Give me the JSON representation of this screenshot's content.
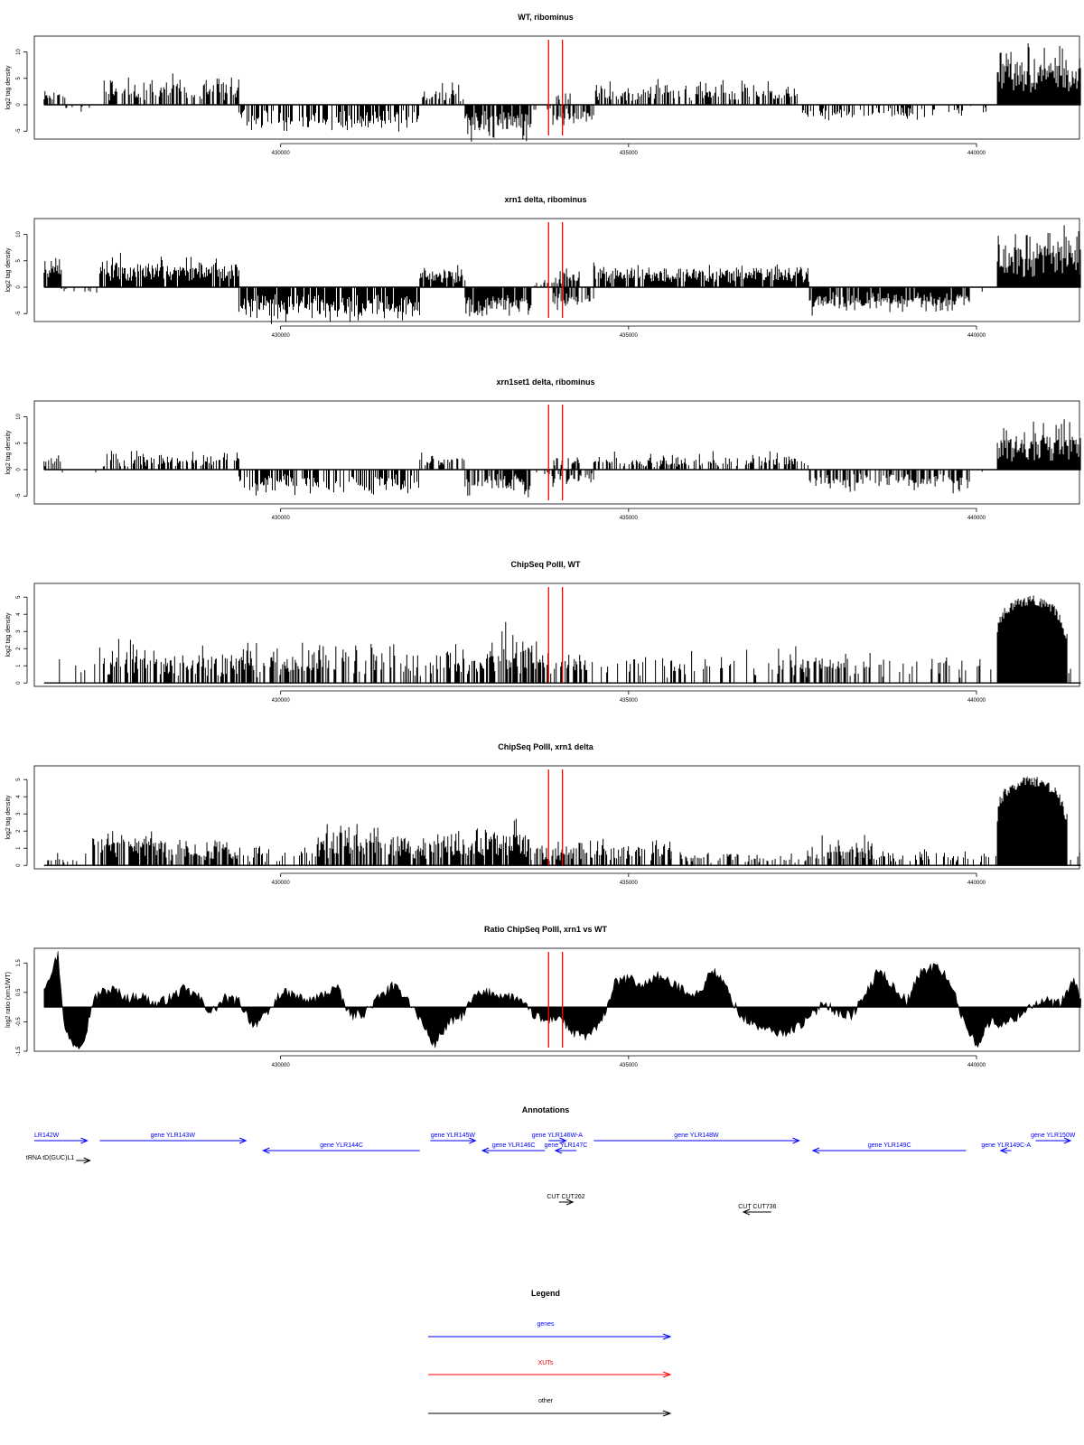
{
  "colors": {
    "genes": "#0000ff",
    "XUTs": "#ff0000",
    "other": "#000000",
    "marker": "#ff0000",
    "signal": "#000000"
  },
  "markers_x": [
    433850,
    434050
  ],
  "chart_data": [
    {
      "type": "bar",
      "title": "WT, ribominus",
      "ylabel": "log2 tag density",
      "xlim": [
        426460,
        441480
      ],
      "ylim": [
        -6.5,
        13
      ],
      "yticks": [
        -5,
        0,
        5,
        10
      ],
      "xticks": [
        430000,
        435000,
        440000
      ],
      "grid": false,
      "x_range": [
        426600,
        441500
      ],
      "seed": 11,
      "segments": [
        {
          "x0": 426600,
          "x1": 426900,
          "sign": 1,
          "base": 1.8,
          "amp": 1.5,
          "fill": 0.45
        },
        {
          "x0": 426900,
          "x1": 427450,
          "sign": -1,
          "base": 0.6,
          "amp": 0.8,
          "fill": 0.08
        },
        {
          "x0": 427450,
          "x1": 429400,
          "sign": 1,
          "base": 2.8,
          "amp": 3.0,
          "fill": 0.6
        },
        {
          "x0": 429400,
          "x1": 432000,
          "sign": -1,
          "base": 2.8,
          "amp": 2.5,
          "fill": 0.55
        },
        {
          "x0": 432000,
          "x1": 432650,
          "sign": 1,
          "base": 1.8,
          "amp": 2.2,
          "fill": 0.55
        },
        {
          "x0": 432650,
          "x1": 433600,
          "sign": -1,
          "base": 4.0,
          "amp": 2.5,
          "fill": 0.8
        },
        {
          "x0": 433600,
          "x1": 433900,
          "sign": -1,
          "base": 0.8,
          "amp": 1.0,
          "fill": 0.15
        },
        {
          "x0": 433900,
          "x1": 434500,
          "sign": -1,
          "base": 2.5,
          "amp": 1.5,
          "fill": 0.5
        },
        {
          "x0": 433900,
          "x1": 434200,
          "sign": 1,
          "base": 1.5,
          "amp": 1.5,
          "fill": 0.4
        },
        {
          "x0": 434500,
          "x1": 437500,
          "sign": 1,
          "base": 2.2,
          "amp": 2.5,
          "fill": 0.55
        },
        {
          "x0": 437500,
          "x1": 439800,
          "sign": -1,
          "base": 1.5,
          "amp": 1.5,
          "fill": 0.4
        },
        {
          "x0": 439800,
          "x1": 440300,
          "sign": -1,
          "base": 0.5,
          "amp": 1.0,
          "fill": 0.08
        },
        {
          "x0": 440300,
          "x1": 441500,
          "sign": 1,
          "base": 6.5,
          "amp": 4.5,
          "fill": 1.0
        }
      ]
    },
    {
      "type": "bar",
      "title": "xrn1 delta, ribominus",
      "ylabel": "log2 tag density",
      "xlim": [
        426460,
        441480
      ],
      "ylim": [
        -6.5,
        13
      ],
      "yticks": [
        -5,
        0,
        5,
        10
      ],
      "xticks": [
        430000,
        435000,
        440000
      ],
      "grid": false,
      "x_range": [
        426600,
        441500
      ],
      "seed": 23,
      "segments": [
        {
          "x0": 426600,
          "x1": 426850,
          "sign": 1,
          "base": 3.5,
          "amp": 3.0,
          "fill": 0.9
        },
        {
          "x0": 426850,
          "x1": 427400,
          "sign": -1,
          "base": 0.6,
          "amp": 1.0,
          "fill": 0.1
        },
        {
          "x0": 427400,
          "x1": 429400,
          "sign": 1,
          "base": 3.5,
          "amp": 2.5,
          "fill": 0.9
        },
        {
          "x0": 429400,
          "x1": 432000,
          "sign": -1,
          "base": 4.2,
          "amp": 2.3,
          "fill": 0.9
        },
        {
          "x0": 432000,
          "x1": 432650,
          "sign": 1,
          "base": 2.5,
          "amp": 1.5,
          "fill": 0.9
        },
        {
          "x0": 432650,
          "x1": 433600,
          "sign": -1,
          "base": 4.2,
          "amp": 2.0,
          "fill": 0.95
        },
        {
          "x0": 433600,
          "x1": 433900,
          "sign": 1,
          "base": 0.8,
          "amp": 0.8,
          "fill": 0.3
        },
        {
          "x0": 433900,
          "x1": 434500,
          "sign": -1,
          "base": 2.8,
          "amp": 1.5,
          "fill": 0.7
        },
        {
          "x0": 433900,
          "x1": 434300,
          "sign": 1,
          "base": 2.0,
          "amp": 1.5,
          "fill": 0.6
        },
        {
          "x0": 434500,
          "x1": 437600,
          "sign": 1,
          "base": 2.5,
          "amp": 2.0,
          "fill": 0.85
        },
        {
          "x0": 437600,
          "x1": 439900,
          "sign": -1,
          "base": 3.0,
          "amp": 2.0,
          "fill": 0.85
        },
        {
          "x0": 439900,
          "x1": 440300,
          "sign": -1,
          "base": 0.5,
          "amp": 1.0,
          "fill": 0.1
        },
        {
          "x0": 440300,
          "x1": 441500,
          "sign": 1,
          "base": 6.3,
          "amp": 4.2,
          "fill": 1.0
        }
      ]
    },
    {
      "type": "bar",
      "title": "xrn1set1 delta, ribominus",
      "ylabel": "log2 tag density",
      "xlim": [
        426460,
        441480
      ],
      "ylim": [
        -6.5,
        13
      ],
      "yticks": [
        -5,
        0,
        5,
        10
      ],
      "xticks": [
        430000,
        435000,
        440000
      ],
      "grid": false,
      "x_range": [
        426600,
        441500
      ],
      "seed": 37,
      "segments": [
        {
          "x0": 426600,
          "x1": 426850,
          "sign": 1,
          "base": 1.8,
          "amp": 2.5,
          "fill": 0.45
        },
        {
          "x0": 426850,
          "x1": 427400,
          "sign": -1,
          "base": 0.8,
          "amp": 1.2,
          "fill": 0.1
        },
        {
          "x0": 427400,
          "x1": 429400,
          "sign": 1,
          "base": 1.6,
          "amp": 2.6,
          "fill": 0.55
        },
        {
          "x0": 429400,
          "x1": 432000,
          "sign": -1,
          "base": 2.6,
          "amp": 2.5,
          "fill": 0.6
        },
        {
          "x0": 432000,
          "x1": 432650,
          "sign": 1,
          "base": 1.8,
          "amp": 1.5,
          "fill": 0.55
        },
        {
          "x0": 432650,
          "x1": 433600,
          "sign": -1,
          "base": 2.8,
          "amp": 2.6,
          "fill": 0.7
        },
        {
          "x0": 433600,
          "x1": 433900,
          "sign": -1,
          "base": 0.8,
          "amp": 1.0,
          "fill": 0.2
        },
        {
          "x0": 433900,
          "x1": 434500,
          "sign": -1,
          "base": 2.0,
          "amp": 1.5,
          "fill": 0.5
        },
        {
          "x0": 433900,
          "x1": 434300,
          "sign": 1,
          "base": 1.3,
          "amp": 1.5,
          "fill": 0.4
        },
        {
          "x0": 434500,
          "x1": 437600,
          "sign": 1,
          "base": 1.6,
          "amp": 2.0,
          "fill": 0.5
        },
        {
          "x0": 437600,
          "x1": 439900,
          "sign": -1,
          "base": 2.4,
          "amp": 2.2,
          "fill": 0.6
        },
        {
          "x0": 439900,
          "x1": 440300,
          "sign": -1,
          "base": 0.5,
          "amp": 1.0,
          "fill": 0.1
        },
        {
          "x0": 440300,
          "x1": 441500,
          "sign": 1,
          "base": 4.8,
          "amp": 4.2,
          "fill": 1.0
        }
      ]
    },
    {
      "type": "bar",
      "title": "ChipSeq PolII, WT",
      "ylabel": "log2 tag density",
      "xlim": [
        426460,
        441480
      ],
      "ylim": [
        -0.2,
        5.8
      ],
      "yticks": [
        0,
        1,
        2,
        3,
        4,
        5
      ],
      "xticks": [
        430000,
        435000,
        440000
      ],
      "grid": false,
      "x_range": [
        426600,
        441500
      ],
      "seed": 51,
      "segments": [
        {
          "x0": 426600,
          "x1": 427400,
          "sign": 1,
          "base": 1.0,
          "amp": 0.8,
          "fill": 0.12
        },
        {
          "x0": 427400,
          "x1": 428100,
          "sign": 1,
          "base": 1.2,
          "amp": 1.5,
          "fill": 0.6
        },
        {
          "x0": 428100,
          "x1": 429600,
          "sign": 1,
          "base": 1.1,
          "amp": 1.4,
          "fill": 0.55
        },
        {
          "x0": 429600,
          "x1": 430300,
          "sign": 1,
          "base": 1.0,
          "amp": 1.2,
          "fill": 0.45
        },
        {
          "x0": 430300,
          "x1": 431800,
          "sign": 1,
          "base": 1.2,
          "amp": 1.6,
          "fill": 0.55
        },
        {
          "x0": 431800,
          "x1": 432400,
          "sign": 1,
          "base": 1.1,
          "amp": 1.2,
          "fill": 0.5
        },
        {
          "x0": 432400,
          "x1": 433000,
          "sign": 1,
          "base": 1.3,
          "amp": 1.4,
          "fill": 0.6
        },
        {
          "x0": 433000,
          "x1": 433700,
          "sign": 1,
          "base": 1.6,
          "amp": 1.8,
          "fill": 0.7
        },
        {
          "x0": 433700,
          "x1": 434400,
          "sign": 1,
          "base": 1.2,
          "amp": 1.2,
          "fill": 0.55
        },
        {
          "x0": 434400,
          "x1": 437000,
          "sign": 1,
          "base": 1.0,
          "amp": 1.0,
          "fill": 0.25
        },
        {
          "x0": 437000,
          "x1": 437600,
          "sign": 1,
          "base": 1.1,
          "amp": 1.5,
          "fill": 0.45
        },
        {
          "x0": 437600,
          "x1": 438700,
          "sign": 1,
          "base": 1.2,
          "amp": 1.1,
          "fill": 0.5
        },
        {
          "x0": 438700,
          "x1": 440300,
          "sign": 1,
          "base": 1.0,
          "amp": 0.8,
          "fill": 0.2
        },
        {
          "x0": 440300,
          "x1": 441300,
          "sign": 1,
          "base": 4.5,
          "amp": 1.0,
          "fill": 1.0,
          "dome": true
        },
        {
          "x0": 441300,
          "x1": 441500,
          "sign": 1,
          "base": 1.0,
          "amp": 0.2,
          "fill": 0.3
        }
      ]
    },
    {
      "type": "bar",
      "title": "ChipSeq PolII, xrn1 delta",
      "ylabel": "log2 tag density",
      "xlim": [
        426460,
        441480
      ],
      "ylim": [
        -0.2,
        5.8
      ],
      "yticks": [
        0,
        1,
        2,
        3,
        4,
        5
      ],
      "xticks": [
        430000,
        435000,
        440000
      ],
      "grid": false,
      "x_range": [
        426600,
        441500
      ],
      "seed": 67,
      "segments": [
        {
          "x0": 426600,
          "x1": 427300,
          "sign": 1,
          "base": 0.3,
          "amp": 0.6,
          "fill": 0.1
        },
        {
          "x0": 427300,
          "x1": 428200,
          "sign": 1,
          "base": 1.3,
          "amp": 0.9,
          "fill": 0.8
        },
        {
          "x0": 428200,
          "x1": 429400,
          "sign": 1,
          "base": 0.9,
          "amp": 0.9,
          "fill": 0.6
        },
        {
          "x0": 429400,
          "x1": 430500,
          "sign": 1,
          "base": 0.6,
          "amp": 0.8,
          "fill": 0.4
        },
        {
          "x0": 430500,
          "x1": 432000,
          "sign": 1,
          "base": 1.3,
          "amp": 1.1,
          "fill": 0.8
        },
        {
          "x0": 432000,
          "x1": 432800,
          "sign": 1,
          "base": 1.2,
          "amp": 1.0,
          "fill": 0.75
        },
        {
          "x0": 432800,
          "x1": 433600,
          "sign": 1,
          "base": 1.5,
          "amp": 1.1,
          "fill": 0.85
        },
        {
          "x0": 433600,
          "x1": 434400,
          "sign": 1,
          "base": 0.8,
          "amp": 0.8,
          "fill": 0.55
        },
        {
          "x0": 434400,
          "x1": 435600,
          "sign": 1,
          "base": 0.9,
          "amp": 0.8,
          "fill": 0.6
        },
        {
          "x0": 435600,
          "x1": 437600,
          "sign": 1,
          "base": 0.4,
          "amp": 0.5,
          "fill": 0.3
        },
        {
          "x0": 437600,
          "x1": 438500,
          "sign": 1,
          "base": 0.9,
          "amp": 0.8,
          "fill": 0.65
        },
        {
          "x0": 438500,
          "x1": 440300,
          "sign": 1,
          "base": 0.5,
          "amp": 0.5,
          "fill": 0.3
        },
        {
          "x0": 440300,
          "x1": 441300,
          "sign": 1,
          "base": 4.6,
          "amp": 1.0,
          "fill": 1.0,
          "dome": true
        },
        {
          "x0": 441300,
          "x1": 441500,
          "sign": 1,
          "base": 0.5,
          "amp": 0.4,
          "fill": 0.3
        }
      ]
    },
    {
      "type": "area",
      "title": "Ratio ChipSeq PolII, xrn1 vs WT",
      "ylabel": "log2 ratio (xrn1/WT)",
      "xlim": [
        426460,
        441480
      ],
      "ylim": [
        -1.5,
        2.0
      ],
      "yticks": [
        -1.5,
        -0.5,
        0.5,
        1.5
      ],
      "xticks": [
        430000,
        435000,
        440000
      ],
      "grid": false,
      "baseline": 0,
      "x": [
        426600,
        426700,
        426800,
        426900,
        427000,
        427100,
        427200,
        427300,
        427400,
        427600,
        427800,
        428000,
        428200,
        428400,
        428600,
        428800,
        429000,
        429200,
        429400,
        429600,
        429800,
        430000,
        430200,
        430400,
        430600,
        430800,
        431000,
        431200,
        431400,
        431600,
        431800,
        432000,
        432200,
        432400,
        432600,
        432800,
        433000,
        433200,
        433400,
        433600,
        433800,
        434000,
        434200,
        434400,
        434600,
        434800,
        435000,
        435200,
        435400,
        435600,
        435800,
        436000,
        436200,
        436400,
        436600,
        436800,
        437000,
        437200,
        437400,
        437600,
        437800,
        438000,
        438200,
        438400,
        438600,
        438800,
        439000,
        439200,
        439400,
        439600,
        439800,
        440000,
        440200,
        440400,
        440600,
        440800,
        441000,
        441200,
        441400,
        441500
      ],
      "y": [
        0.7,
        1.2,
        1.8,
        -0.8,
        -1.2,
        -1.3,
        -0.9,
        0.2,
        0.5,
        0.6,
        0.3,
        0.4,
        0.1,
        0.3,
        0.6,
        0.4,
        -0.2,
        0.3,
        0.2,
        -0.6,
        -0.3,
        0.5,
        0.4,
        0.2,
        0.4,
        0.7,
        -0.3,
        -0.2,
        0.3,
        0.7,
        0.4,
        -0.4,
        -1.3,
        -0.6,
        -0.3,
        0.4,
        0.5,
        0.4,
        0.3,
        -0.2,
        -0.5,
        -0.3,
        -0.9,
        -1.0,
        -0.6,
        0.8,
        1.0,
        0.7,
        1.1,
        0.8,
        0.6,
        0.4,
        1.3,
        0.7,
        -0.3,
        -0.6,
        -0.8,
        -0.9,
        -0.7,
        -0.4,
        0.2,
        -0.2,
        -0.3,
        0.4,
        1.3,
        0.7,
        0.2,
        1.2,
        1.4,
        1.0,
        -0.4,
        -1.3,
        -0.5,
        -0.6,
        -0.3,
        0.1,
        0.2,
        0.1,
        0.9,
        0.3
      ]
    }
  ],
  "annotations": {
    "title": "Annotations",
    "xlim": [
      426460,
      441480
    ],
    "features": [
      {
        "label": "LR142W",
        "x0": 426460,
        "x1": 427220,
        "dir": 1,
        "row": 0,
        "kind": "genes",
        "label_at": "start"
      },
      {
        "label": "gene YLR143W",
        "x0": 427400,
        "x1": 429500,
        "dir": 1,
        "row": 0,
        "kind": "genes",
        "label_at": "mid"
      },
      {
        "label": "tRNA tD(GUC)L1",
        "x0": 427060,
        "x1": 427260,
        "dir": 1,
        "row": 2,
        "kind": "other",
        "label_at": "before"
      },
      {
        "label": "gene YLR144C",
        "x0": 429750,
        "x1": 432000,
        "dir": -1,
        "row": 1,
        "kind": "genes",
        "label_at": "mid"
      },
      {
        "label": "gene YLR145W",
        "x0": 432150,
        "x1": 432800,
        "dir": 1,
        "row": 0,
        "kind": "genes",
        "label_at": "mid"
      },
      {
        "label": "gene YLR146C",
        "x0": 432900,
        "x1": 433800,
        "dir": -1,
        "row": 1,
        "kind": "genes",
        "label_at": "mid"
      },
      {
        "label": "gene YLR146W-A",
        "x0": 433850,
        "x1": 434100,
        "dir": 1,
        "row": 0,
        "kind": "genes",
        "label_at": "mid"
      },
      {
        "label": "gene YLR147C",
        "x0": 433950,
        "x1": 434250,
        "dir": -1,
        "row": 1,
        "kind": "genes",
        "label_at": "mid"
      },
      {
        "label": "gene YLR148W",
        "x0": 434500,
        "x1": 437450,
        "dir": 1,
        "row": 0,
        "kind": "genes",
        "label_at": "mid"
      },
      {
        "label": "gene YLR149C",
        "x0": 437650,
        "x1": 439850,
        "dir": -1,
        "row": 1,
        "kind": "genes",
        "label_at": "mid"
      },
      {
        "label": "gene YLR149C-A",
        "x0": 440350,
        "x1": 440500,
        "dir": -1,
        "row": 1,
        "kind": "genes",
        "label_at": "mid"
      },
      {
        "label": "gene YLR150W",
        "x0": 440850,
        "x1": 441350,
        "dir": 1,
        "row": 0,
        "kind": "genes",
        "label_at": "mid"
      },
      {
        "label": "CUT CUT262",
        "x0": 434000,
        "x1": 434200,
        "dir": 1,
        "row": 3,
        "kind": "other",
        "label_at": "mid"
      },
      {
        "label": "CUT CUT736",
        "x0": 436650,
        "x1": 437050,
        "dir": -1,
        "row": 4,
        "kind": "other",
        "label_at": "mid"
      }
    ]
  },
  "legend": {
    "title": "Legend",
    "items": [
      {
        "label": "genes",
        "color": "#0000ff"
      },
      {
        "label": "XUTs",
        "color": "#ff0000"
      },
      {
        "label": "other",
        "color": "#000000"
      }
    ]
  }
}
